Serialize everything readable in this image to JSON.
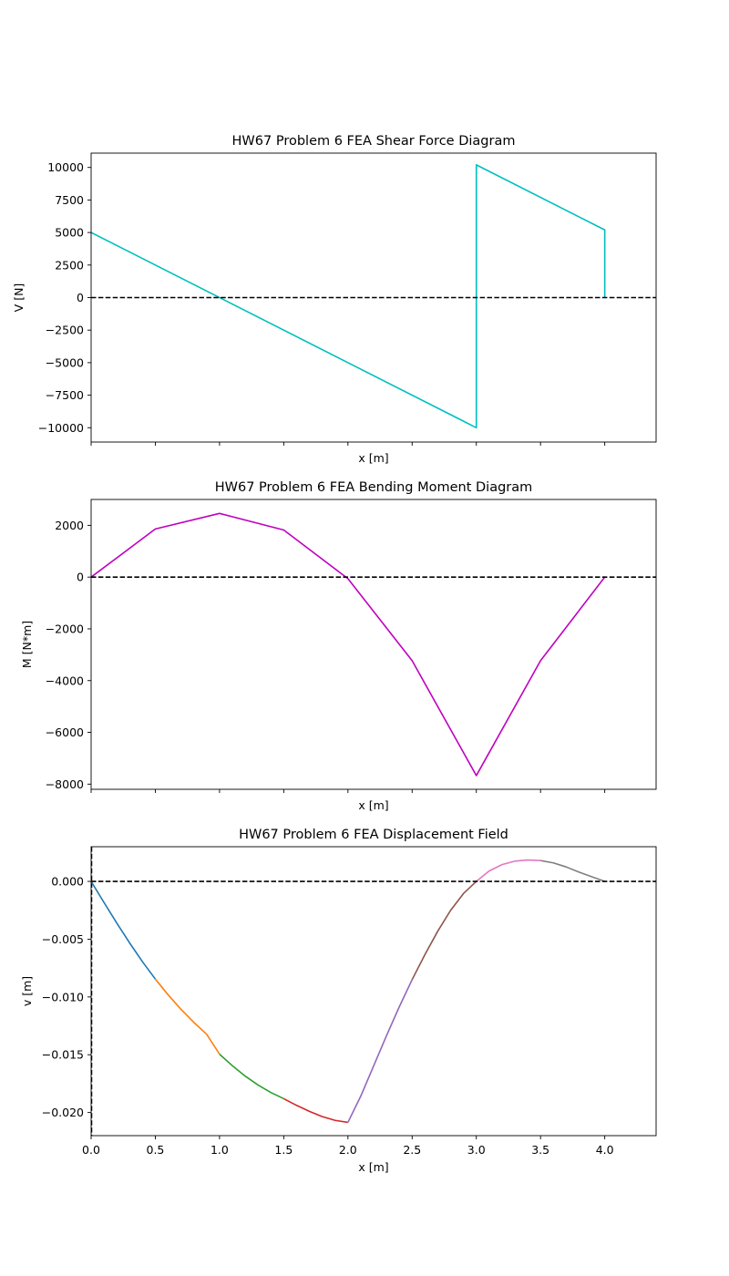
{
  "chart_data": [
    {
      "type": "line",
      "title": "HW67 Problem 6 FEA Shear Force Diagram",
      "xlabel": "x [m]",
      "ylabel": "V [N]",
      "xlim": [
        0,
        4.4
      ],
      "ylim": [
        -11100,
        11100
      ],
      "grid": false,
      "show_x_tick_labels": false,
      "xticks": [
        0,
        0.5,
        1.0,
        1.5,
        2.0,
        2.5,
        3.0,
        3.5,
        4.0
      ],
      "yticks": [
        10000,
        7500,
        5000,
        2500,
        0,
        -2500,
        -5000,
        -7500,
        -10000
      ],
      "ytick_labels": [
        "10000",
        "7500",
        "5000",
        "2500",
        "0",
        "−2500",
        "−5000",
        "−7500",
        "−10000"
      ],
      "reference_line": {
        "y": 0,
        "style": "dashed",
        "color": "#000000"
      },
      "series": [
        {
          "color": "#00bfbf",
          "x": [
            0,
            3.0,
            3.0,
            4.0,
            4.0
          ],
          "y": [
            5000,
            -10000,
            10200,
            5200,
            0
          ]
        }
      ]
    },
    {
      "type": "line",
      "title": "HW67 Problem 6 FEA Bending Moment Diagram",
      "xlabel": "x [m]",
      "ylabel": "M [N*m]",
      "xlim": [
        0,
        4.4
      ],
      "ylim": [
        -8200,
        3000
      ],
      "grid": false,
      "show_x_tick_labels": false,
      "xticks": [
        0,
        0.5,
        1.0,
        1.5,
        2.0,
        2.5,
        3.0,
        3.5,
        4.0
      ],
      "yticks": [
        2000,
        0,
        -2000,
        -4000,
        -6000,
        -8000
      ],
      "ytick_labels": [
        "2000",
        "0",
        "−2000",
        "−4000",
        "−6000",
        "−8000"
      ],
      "reference_line": {
        "y": 0,
        "style": "dashed",
        "color": "#000000"
      },
      "series": [
        {
          "color": "#bf00bf",
          "x": [
            0,
            0.5,
            1.0,
            1.5,
            2.0,
            2.5,
            3.0,
            3.5,
            4.0
          ],
          "y": [
            0,
            1860,
            2460,
            1820,
            -60,
            -3230,
            -7670,
            -3230,
            0
          ]
        }
      ]
    },
    {
      "type": "line",
      "title": "HW67 Problem 6 FEA Displacement Field",
      "xlabel": "x [m]",
      "ylabel": "v [m]",
      "xlim": [
        0,
        4.4
      ],
      "ylim": [
        -0.022,
        0.003
      ],
      "grid": false,
      "show_x_tick_labels": true,
      "xticks": [
        0,
        0.5,
        1.0,
        1.5,
        2.0,
        2.5,
        3.0,
        3.5,
        4.0
      ],
      "xtick_labels": [
        "0.0",
        "0.5",
        "1.0",
        "1.5",
        "2.0",
        "2.5",
        "3.0",
        "3.5",
        "4.0"
      ],
      "yticks": [
        0.0,
        -0.005,
        -0.01,
        -0.015,
        -0.02
      ],
      "ytick_labels": [
        "0.000",
        "−0.005",
        "−0.010",
        "−0.015",
        "−0.020"
      ],
      "reference_line": {
        "y": 0,
        "style": "dashed",
        "color": "#000000"
      },
      "vertical_reference_line": {
        "x": 0,
        "style": "dashed",
        "color": "#000000"
      },
      "series": [
        {
          "color": "#1f77b4",
          "x": [
            0,
            0.1,
            0.2,
            0.3,
            0.4,
            0.5
          ],
          "y": [
            0,
            -0.00182,
            -0.00361,
            -0.00533,
            -0.00695,
            -0.00845
          ]
        },
        {
          "color": "#ff7f0e",
          "x": [
            0.5,
            0.6,
            0.7,
            0.8,
            0.9,
            1.0
          ],
          "y": [
            -0.00845,
            -0.00982,
            -0.01107,
            -0.0122,
            -0.01323,
            -0.01495
          ]
        },
        {
          "color": "#2ca02c",
          "x": [
            1.0,
            1.1,
            1.2,
            1.3,
            1.4,
            1.5
          ],
          "y": [
            -0.01495,
            -0.01595,
            -0.01685,
            -0.01762,
            -0.01827,
            -0.0188
          ]
        },
        {
          "color": "#d62728",
          "x": [
            1.5,
            1.6,
            1.7,
            1.8,
            1.9,
            2.0
          ],
          "y": [
            -0.0188,
            -0.01938,
            -0.0199,
            -0.02035,
            -0.02068,
            -0.02085
          ]
        },
        {
          "color": "#9467bd",
          "x": [
            2.0,
            2.1,
            2.2,
            2.3,
            2.4,
            2.5
          ],
          "y": [
            -0.02085,
            -0.01858,
            -0.01597,
            -0.01336,
            -0.01085,
            -0.0085
          ]
        },
        {
          "color": "#8c564b",
          "x": [
            2.5,
            2.6,
            2.7,
            2.8,
            2.9,
            3.0
          ],
          "y": [
            -0.0085,
            -0.00633,
            -0.0043,
            -0.0025,
            -0.00105,
            0
          ]
        },
        {
          "color": "#e377c2",
          "x": [
            3.0,
            3.1,
            3.2,
            3.3,
            3.4,
            3.5
          ],
          "y": [
            0,
            0.0009,
            0.00145,
            0.00175,
            0.00185,
            0.0018
          ]
        },
        {
          "color": "#7f7f7f",
          "x": [
            3.5,
            3.6,
            3.7,
            3.8,
            3.9,
            4.0
          ],
          "y": [
            0.0018,
            0.0016,
            0.00125,
            0.0008,
            0.0004,
            0
          ]
        }
      ]
    }
  ]
}
